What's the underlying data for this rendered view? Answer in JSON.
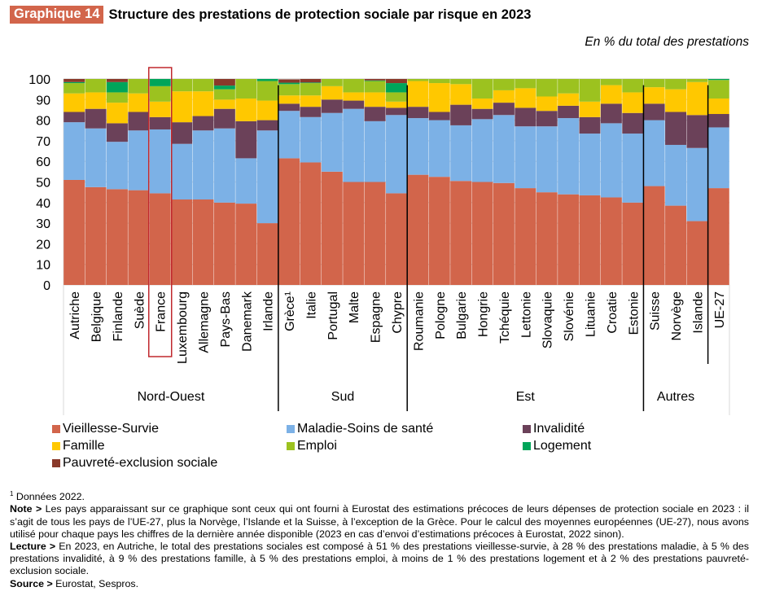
{
  "header": {
    "badge": "Graphique 14",
    "title": "Structure des prestations de protection sociale par risque en 2023",
    "unit": "En % du total des prestations"
  },
  "chart_data": {
    "type": "bar",
    "stacked": true,
    "title": "Structure des prestations de protection sociale par risque en 2023",
    "ylabel": "En % du total des prestations",
    "ylim": [
      0,
      100
    ],
    "yticks": [
      0,
      10,
      20,
      30,
      40,
      50,
      60,
      70,
      80,
      90,
      100
    ],
    "grid": true,
    "legend_position": "bottom",
    "highlight": "France",
    "groups": [
      {
        "name": "Nord-Ouest",
        "categories": [
          "Autriche",
          "Belgique",
          "Finlande",
          "Suède",
          "France",
          "Luxembourg",
          "Allemagne",
          "Pays-Bas",
          "Danemark",
          "Irlande"
        ]
      },
      {
        "name": "Sud",
        "categories": [
          "Grèce¹",
          "Italie",
          "Portugal",
          "Malte",
          "Espagne",
          "Chypre"
        ]
      },
      {
        "name": "Est",
        "categories": [
          "Roumanie",
          "Pologne",
          "Bulgarie",
          "Hongrie",
          "Tchéquie",
          "Lettonie",
          "Slovaquie",
          "Slovénie",
          "Lituanie",
          "Croatie",
          "Estonie"
        ]
      },
      {
        "name": "Autres",
        "categories": [
          "Suisse",
          "Norvège",
          "Islande"
        ]
      },
      {
        "name": "",
        "categories": [
          "UE-27"
        ]
      }
    ],
    "categories": [
      "Autriche",
      "Belgique",
      "Finlande",
      "Suède",
      "France",
      "Luxembourg",
      "Allemagne",
      "Pays-Bas",
      "Danemark",
      "Irlande",
      "Grèce¹",
      "Italie",
      "Portugal",
      "Malte",
      "Espagne",
      "Chypre",
      "Roumanie",
      "Pologne",
      "Bulgarie",
      "Hongrie",
      "Tchéquie",
      "Lettonie",
      "Slovaquie",
      "Slovénie",
      "Lituanie",
      "Croatie",
      "Estonie",
      "Suisse",
      "Norvège",
      "Islande",
      "UE-27"
    ],
    "series": [
      {
        "name": "Vieillesse-Survie",
        "color": "#d2654b",
        "values": [
          51,
          47.5,
          46.5,
          46,
          44.5,
          41.5,
          41.5,
          40,
          39.5,
          30,
          61.5,
          59.5,
          55,
          50,
          50,
          44.5,
          53.5,
          52.5,
          50.5,
          50,
          49.5,
          47,
          45,
          44,
          43.5,
          42.5,
          40,
          48,
          38.5,
          31,
          47
        ]
      },
      {
        "name": "Maladie-Soins de santé",
        "color": "#7cb1e6",
        "values": [
          28,
          28.5,
          23,
          29,
          31,
          27,
          33.5,
          36,
          22,
          45,
          23,
          22,
          28.5,
          35.5,
          29.5,
          38,
          27.5,
          27.5,
          27,
          30.5,
          33,
          30,
          32,
          37,
          30,
          36,
          33.5,
          32,
          29.5,
          35.5,
          29.5
        ]
      },
      {
        "name": "Invalidité",
        "color": "#6b4159",
        "values": [
          5,
          9.5,
          9,
          9,
          6,
          10.5,
          7,
          9.5,
          18,
          5,
          3.5,
          5,
          6.5,
          4,
          7,
          3.5,
          5.5,
          4,
          10,
          5,
          6,
          9,
          7.5,
          6,
          8,
          9.5,
          10,
          8,
          16,
          16,
          6.5
        ]
      },
      {
        "name": "Famille",
        "color": "#ffc800",
        "values": [
          9,
          8,
          10,
          9,
          7.5,
          15,
          12,
          4.5,
          11,
          9.5,
          4,
          5.5,
          6.5,
          4,
          7,
          3,
          12.5,
          14,
          10,
          5,
          6,
          9.5,
          7,
          6,
          7.5,
          9,
          10,
          8,
          11,
          16,
          7.5
        ]
      },
      {
        "name": "Emploi",
        "color": "#9cc21f",
        "values": [
          5,
          7.5,
          5,
          10,
          7.5,
          15,
          12,
          5,
          11,
          9.5,
          5.5,
          6,
          6,
          6.5,
          5.5,
          4.5,
          12,
          13.5,
          9.5,
          10.5,
          7.5,
          9,
          11,
          7.5,
          11.5,
          9,
          12,
          6,
          11,
          10,
          9
        ]
      },
      {
        "name": "Logement",
        "color": "#00a55a",
        "values": [
          0.5,
          0.8,
          5,
          2.8,
          5.5,
          3,
          3.4,
          1.8,
          3,
          4,
          0.7,
          0.3,
          0.3,
          1.1,
          0.3,
          4.5,
          0.1,
          0.2,
          0.2,
          1.6,
          1.6,
          1,
          0.2,
          0.2,
          0.3,
          0.2,
          0.4,
          2.5,
          0.3,
          2.9,
          3.7
        ]
      },
      {
        "name": "Pauvreté-exclusion sociale",
        "color": "#89392a",
        "values": [
          1.5,
          2.8,
          3.3,
          1.6,
          3.6,
          2.8,
          0.7,
          5.7,
          4,
          0.5,
          1.6,
          3.4,
          1.2,
          2,
          1.8,
          4,
          0.7,
          1.4,
          1.2,
          1.1,
          1.3,
          0.7,
          1.3,
          3.3,
          2,
          2,
          0.7,
          2.5,
          2.8,
          3.8,
          2.4
        ]
      }
    ]
  },
  "legend": [
    {
      "label": "Vieillesse-Survie",
      "color": "#d2654b"
    },
    {
      "label": "Maladie-Soins de santé",
      "color": "#7cb1e6"
    },
    {
      "label": "Invalidité",
      "color": "#6b4159"
    },
    {
      "label": "Famille",
      "color": "#ffc800"
    },
    {
      "label": "Emploi",
      "color": "#9cc21f"
    },
    {
      "label": "Logement",
      "color": "#00a55a"
    },
    {
      "label": "Pauvreté-exclusion sociale",
      "color": "#89392a"
    }
  ],
  "notes": {
    "footnote_mark": "1",
    "footnote": " Données 2022.",
    "note_label": "Note >",
    "note": " Les pays apparaissant sur ce graphique sont ceux qui ont fourni à Eurostat des estimations précoces de leurs dépenses de protection sociale en 2023 : il s’agit de tous les pays de l’UE-27, plus la Norvège, l’Islande et la Suisse, à l’exception de la Grèce. Pour le calcul des moyennes européennes (UE-27), nous avons utilisé pour chaque pays les chiffres de la dernière année disponible (2023 en cas d’envoi d’estimations précoces à Eurostat, 2022 sinon).",
    "lecture_label": "Lecture >",
    "lecture": " En 2023, en Autriche, le total des prestations sociales est composé à 51 % des prestations vieillesse-survie, à 28 % des prestations maladie, à 5 % des prestations invalidité, à 9 % des prestations famille, à 5 % des prestations emploi, à moins de 1 % des prestations logement et à 2 % des prestations pauvreté-exclusion sociale.",
    "source_label": "Source >",
    "source": " Eurostat, Sespros."
  }
}
